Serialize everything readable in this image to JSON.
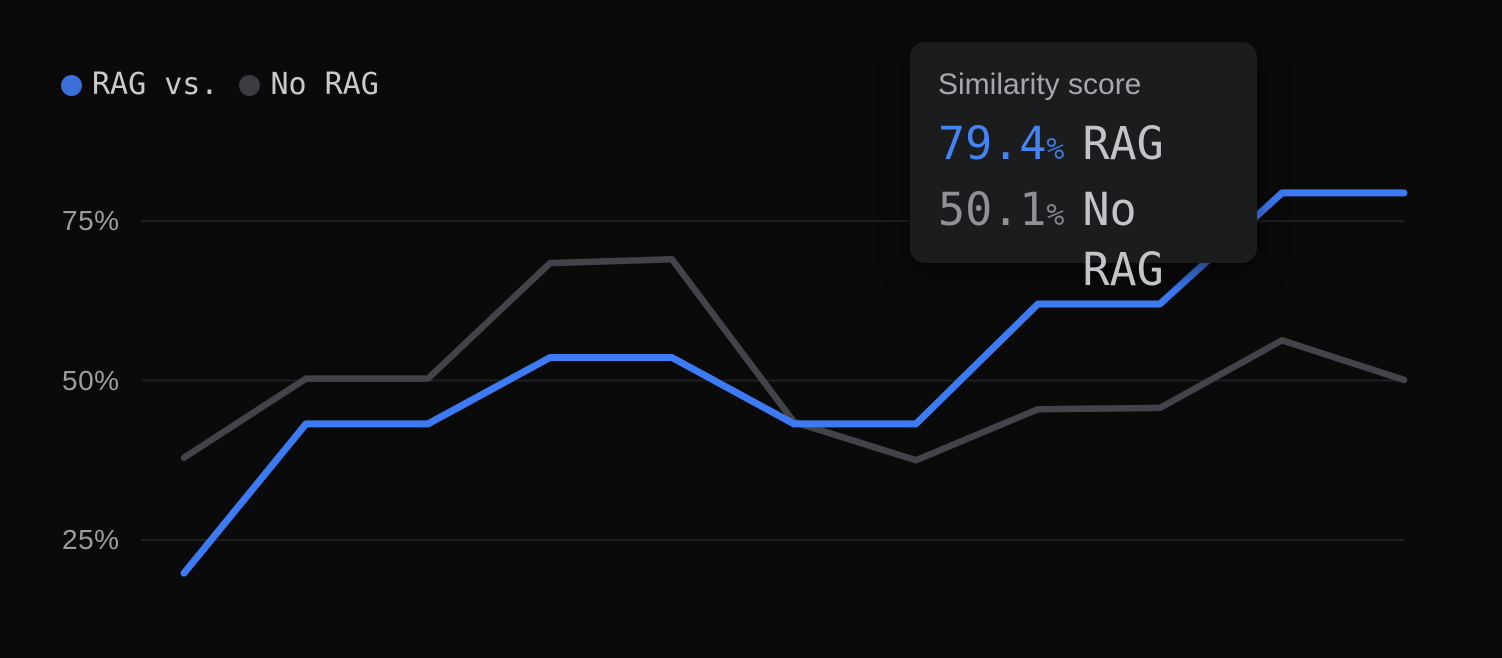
{
  "legend": {
    "items": [
      {
        "label": "RAG vs.",
        "dot_color": "#3c70d9"
      },
      {
        "label": "No RAG",
        "dot_color": "#3a3c42"
      }
    ]
  },
  "axis": {
    "yticks": [
      {
        "label": "75%",
        "value": 75
      },
      {
        "label": "50%",
        "value": 50
      },
      {
        "label": "25%",
        "value": 25
      }
    ]
  },
  "tooltip": {
    "title": "Similarity score",
    "rows": [
      {
        "value": "79.4",
        "unit": "%",
        "label": "RAG",
        "color": "#4584f4"
      },
      {
        "value": "50.1",
        "unit": "%",
        "label": "No RAG",
        "color": "#8f9196"
      }
    ]
  },
  "colors": {
    "background": "#0a0a0b",
    "gridline": "#1e1f22",
    "rag_line": "#3d7bf4",
    "no_rag_line": "#42444a",
    "tooltip_background": "#1b1c1e"
  },
  "chart_data": {
    "type": "line",
    "title": "",
    "value_label": "Similarity score",
    "x": [
      1,
      2,
      3,
      4,
      5,
      6,
      7,
      8,
      9,
      10,
      11
    ],
    "series": [
      {
        "name": "RAG",
        "color": "#3d7bf4",
        "values": [
          19.8,
          43.2,
          43.2,
          53.6,
          53.6,
          43.2,
          43.2,
          62.0,
          62.0,
          79.4,
          79.4
        ]
      },
      {
        "name": "No RAG",
        "color": "#42444a",
        "values": [
          37.9,
          50.3,
          50.3,
          68.4,
          69.0,
          43.5,
          37.5,
          45.5,
          45.7,
          56.3,
          50.1
        ]
      }
    ],
    "xlabel": "",
    "ylabel": "",
    "ylim": [
      0,
      100
    ],
    "y_gridlines": [
      75,
      50,
      25
    ],
    "grid": "horizontal",
    "legend_position": "top-left",
    "hovered_point_index": 10,
    "hovered_values": {
      "RAG": 79.4,
      "No RAG": 50.1
    }
  }
}
